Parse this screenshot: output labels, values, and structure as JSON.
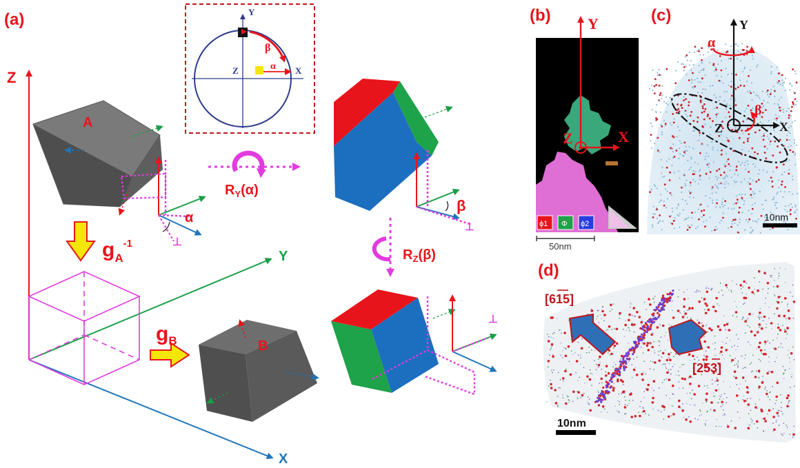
{
  "panels": {
    "a": {
      "label": "(a)",
      "axes": {
        "x": "X",
        "y": "Y",
        "z": "Z"
      },
      "cube_a": "A",
      "cube_b": "B",
      "inset": {
        "y": "Y",
        "x": "X",
        "z": "Z",
        "alpha": "α",
        "beta": "β"
      },
      "rot_y_main": "R",
      "rot_y_sub": "Y",
      "rot_y_arg": "(α)",
      "rot_z_main": "R",
      "rot_z_sub": "Z",
      "rot_z_arg": "(β)",
      "alpha": "α",
      "beta": "β",
      "perp": "⊥",
      "g_inv_main": "g",
      "g_inv_sub": "A",
      "g_inv_sup": "-1",
      "g_b_main": "g",
      "g_b_sub": "B"
    },
    "b": {
      "label": "(b)",
      "y": "Y",
      "x": "X",
      "z": "Z",
      "legend": [
        "ϕ1",
        "Φ",
        "ϕ2"
      ],
      "scale": "50nm"
    },
    "c": {
      "label": "(c)",
      "y": "Y",
      "x": "X",
      "z": "Z",
      "alpha": "α",
      "beta": "β",
      "scale": "10nm"
    },
    "d": {
      "label": "(d)",
      "dir1": "[615]",
      "dir2": "[253]",
      "scale": "10nm"
    }
  },
  "colors": {
    "red": "#e8141b",
    "green": "#1a9e47",
    "blue": "#1f74b8",
    "magenta": "#e23be0",
    "cube_gray": "#6c6c6c",
    "face_red": "#e8141b",
    "face_green": "#1ea24a",
    "face_blue": "#1c6fbf"
  }
}
